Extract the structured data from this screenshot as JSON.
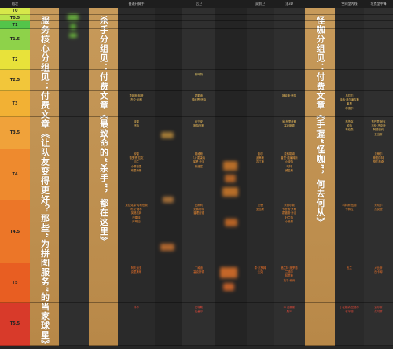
{
  "header": {
    "tier_label": "档次",
    "columns": [
      "",
      "",
      "普通开屏手",
      "",
      "后卫",
      "",
      "双前卫",
      "法3D",
      "",
      "空间型内线",
      "坦克型中锋"
    ]
  },
  "tiers": [
    {
      "label": "T0",
      "color": "#d7e84a"
    },
    {
      "label": "T0.5",
      "color": "#b8e34a"
    },
    {
      "label": "T1",
      "color": "#54c44a"
    },
    {
      "label": "T1.5",
      "color": "#8ed24a"
    },
    {
      "label": "T2",
      "color": "#e8e23a"
    },
    {
      "label": "T2.5",
      "color": "#f2c63a"
    },
    {
      "label": "T3",
      "color": "#f2b134"
    },
    {
      "label": "T3.5",
      "color": "#f0a23a"
    },
    {
      "label": "T4",
      "color": "#ee8a2e"
    },
    {
      "label": "T4.5",
      "color": "#ec7628"
    },
    {
      "label": "T5",
      "color": "#e85e22"
    },
    {
      "label": "T5.5",
      "color": "#d83a2a"
    }
  ],
  "banners": [
    {
      "text": "服务核心分组见：付费文章《让队友变得更好？那些“为拼图服务”的当家球星》"
    },
    {
      "text": "杀手分组见：付费文章《最致命的“杀手”，都在这里》"
    },
    {
      "text": "怪咖分组见：付费文章《手握“怪咖”，何去何从》"
    }
  ],
  "entries": {
    "c2": [
      {
        "t": "詹姆斯·哈登",
        "tier": 6,
        "o": 0
      },
      {
        "t": "杰伦·布朗",
        "tier": 6,
        "o": 1
      },
      {
        "t": "特雷",
        "tier": 7,
        "o": 0
      },
      {
        "t": "怀特",
        "tier": 7,
        "o": 1
      },
      {
        "t": "穆雷",
        "tier": 8,
        "o": 0
      },
      {
        "t": "德罗赞·拉文",
        "tier": 8,
        "o": 1
      },
      {
        "t": "加兰",
        "tier": 8,
        "o": 2
      },
      {
        "t": "小贾巴里",
        "tier": 8,
        "o": 3
      },
      {
        "t": "布里奇斯",
        "tier": 8,
        "o": 4
      },
      {
        "t": "克拉克森·哈利伯顿",
        "tier": 9,
        "o": 0
      },
      {
        "t": "布克·格林",
        "tier": 9,
        "o": 1
      },
      {
        "t": "英格拉姆",
        "tier": 9,
        "o": 2
      },
      {
        "t": "巴雷特",
        "tier": 9,
        "o": 3
      },
      {
        "t": "库明加",
        "tier": 9,
        "o": 4
      },
      {
        "t": "阿夫迪亚",
        "tier": 10,
        "o": 0
      },
      {
        "t": "克里斯蒂",
        "tier": 10,
        "o": 1
      },
      {
        "t": "科尔",
        "tier": 11,
        "o": 0
      }
    ],
    "c4": [
      {
        "t": "斯玛特",
        "tier": 5,
        "o": 0
      },
      {
        "t": "霍勒迪",
        "tier": 6,
        "o": 0
      },
      {
        "t": "德维恩·怀特",
        "tier": 6,
        "o": 1
      },
      {
        "t": "坎宁安",
        "tier": 7,
        "o": 0
      },
      {
        "t": "斯特鲁斯",
        "tier": 7,
        "o": 1
      },
      {
        "t": "戴维斯",
        "tier": 8,
        "o": 0
      },
      {
        "t": "T.J.·麦康纳",
        "tier": 8,
        "o": 1
      },
      {
        "t": "保罗·乔治",
        "tier": 8,
        "o": 2
      },
      {
        "t": "斯潘塞",
        "tier": 8,
        "o": 3
      },
      {
        "t": "比斯利",
        "tier": 9,
        "o": 0
      },
      {
        "t": "范弗利特",
        "tier": 9,
        "o": 1
      },
      {
        "t": "普理查德",
        "tier": 9,
        "o": 2
      },
      {
        "t": "丁威迪",
        "tier": 10,
        "o": 0
      },
      {
        "t": "塞克斯顿",
        "tier": 10,
        "o": 1
      },
      {
        "t": "巴特勒",
        "tier": 11,
        "o": 0
      },
      {
        "t": "拉塞尔",
        "tier": 11,
        "o": 1
      }
    ],
    "c6": [
      {
        "t": "普尔",
        "tier": 8,
        "o": 0
      },
      {
        "t": "波蒂斯",
        "tier": 8,
        "o": 1
      },
      {
        "t": "吉丁斯",
        "tier": 8,
        "o": 2
      },
      {
        "t": "贝恩",
        "tier": 9,
        "o": 0
      },
      {
        "t": "亚当斯",
        "tier": 9,
        "o": 1
      },
      {
        "t": "泰·杰罗姆",
        "tier": 10,
        "o": 0
      },
      {
        "t": "沃克",
        "tier": 10,
        "o": 1
      }
    ],
    "c7": [
      {
        "t": "福克斯·怀特",
        "tier": 6,
        "o": 0
      },
      {
        "t": "米·布里奇斯",
        "tier": 7,
        "o": 0
      },
      {
        "t": "塞克斯顿",
        "tier": 7,
        "o": 1
      },
      {
        "t": "麦科勒姆",
        "tier": 8,
        "o": 0
      },
      {
        "t": "普里·威廉姆斯",
        "tier": 8,
        "o": 1
      },
      {
        "t": "小波特",
        "tier": 8,
        "o": 2
      },
      {
        "t": "哈特",
        "tier": 8,
        "o": 3
      },
      {
        "t": "威金斯",
        "tier": 8,
        "o": 4
      },
      {
        "t": "米德尔顿",
        "tier": 9,
        "o": 0
      },
      {
        "t": "卡鲁索·罗斯",
        "tier": 9,
        "o": 1
      },
      {
        "t": "霍福德·乔治",
        "tier": 9,
        "o": 2
      },
      {
        "t": "杜兰特",
        "tier": 9,
        "o": 3
      },
      {
        "t": "小曼恩",
        "tier": 9,
        "o": 4
      },
      {
        "t": "格兰特·施罗德",
        "tier": 10,
        "o": 0
      },
      {
        "t": "兰德尔",
        "tier": 10,
        "o": 1
      },
      {
        "t": "哈里斯",
        "tier": 10,
        "o": 2
      },
      {
        "t": "托平·乔丹",
        "tier": 10,
        "o": 3
      },
      {
        "t": "本·西蒙斯",
        "tier": 11,
        "o": 0
      },
      {
        "t": "威少",
        "tier": 11,
        "o": 1
      }
    ],
    "c9": [
      {
        "t": "乌拉尔",
        "tier": 6,
        "o": 0
      },
      {
        "t": "特纳·波尔津吉斯",
        "tier": 6,
        "o": 1
      },
      {
        "t": "莱恩",
        "tier": 6,
        "o": 2
      },
      {
        "t": "林德尔",
        "tier": 6,
        "o": 3
      },
      {
        "t": "布鲁克",
        "tier": 7,
        "o": 0
      },
      {
        "t": "哈特",
        "tier": 7,
        "o": 1
      },
      {
        "t": "布伦森",
        "tier": 7,
        "o": 2
      },
      {
        "t": "科林斯·伍德",
        "tier": 9,
        "o": 0
      },
      {
        "t": "卡佩拉",
        "tier": 9,
        "o": 1
      },
      {
        "t": "瓦兰",
        "tier": 10,
        "o": 0
      },
      {
        "t": "小瓦格纳·兰德尔",
        "tier": 11,
        "o": 0
      },
      {
        "t": "霍华德",
        "tier": 11,
        "o": 1
      }
    ],
    "c10": [
      {
        "t": "贾巴里·帕克",
        "tier": 7,
        "o": 0
      },
      {
        "t": "杰伦·杰克逊",
        "tier": 7,
        "o": 1
      },
      {
        "t": "阿德巴约",
        "tier": 7,
        "o": 2
      },
      {
        "t": "亚当斯",
        "tier": 7,
        "o": 3
      },
      {
        "t": "贝蒂尔",
        "tier": 8,
        "o": 0
      },
      {
        "t": "斯图尔特",
        "tier": 8,
        "o": 1
      },
      {
        "t": "努尔基奇",
        "tier": 8,
        "o": 2
      },
      {
        "t": "米切尔",
        "tier": 9,
        "o": 0
      },
      {
        "t": "杰克逊",
        "tier": 9,
        "o": 1
      },
      {
        "t": "卢比斯",
        "tier": 10,
        "o": 0
      },
      {
        "t": "西卡姆",
        "tier": 10,
        "o": 1
      },
      {
        "t": "迈尔斯",
        "tier": 11,
        "o": 0
      },
      {
        "t": "托马斯",
        "tier": 11,
        "o": 1
      }
    ]
  }
}
